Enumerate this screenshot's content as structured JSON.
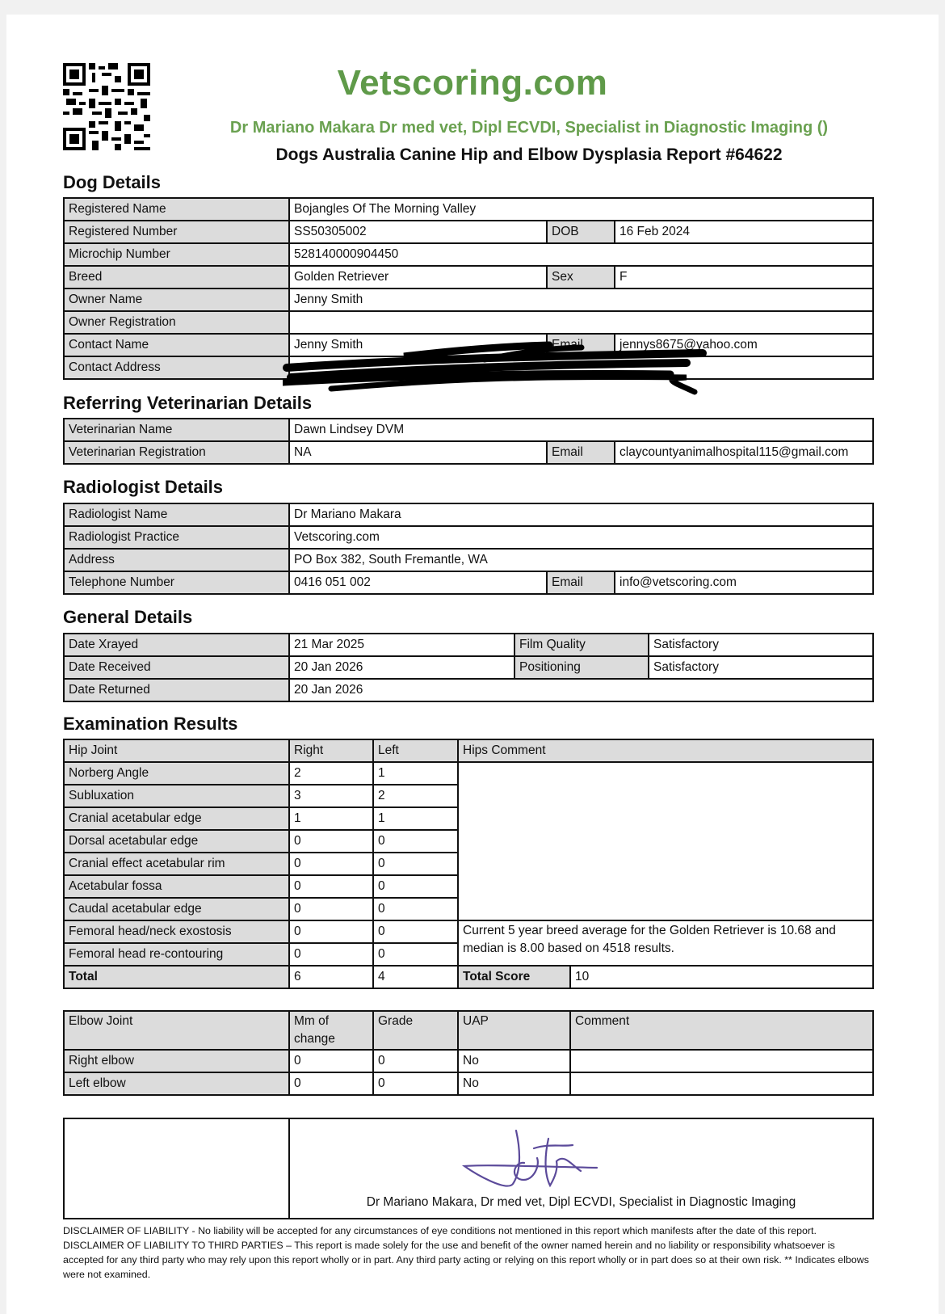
{
  "header": {
    "brand": "Vetscoring.com",
    "subtitle": "Dr Mariano Makara Dr med vet, Dipl ECVDI, Specialist in Diagnostic Imaging ()",
    "report_title": "Dogs Australia Canine Hip and Elbow Dysplasia Report #64622",
    "brand_color": "#5f9a49"
  },
  "dog": {
    "heading": "Dog Details",
    "registered_name_label": "Registered Name",
    "registered_name": "Bojangles Of The Morning Valley",
    "registered_number_label": "Registered Number",
    "registered_number": "SS50305002",
    "dob_label": "DOB",
    "dob": "16 Feb 2024",
    "microchip_label": "Microchip Number",
    "microchip": "528140000904450",
    "breed_label": "Breed",
    "breed": "Golden Retriever",
    "sex_label": "Sex",
    "sex": "F",
    "owner_name_label": "Owner Name",
    "owner_name": "Jenny Smith",
    "owner_reg_label": "Owner Registration",
    "owner_reg": "",
    "contact_name_label": "Contact Name",
    "contact_name": "Jenny Smith",
    "email_label": "Email",
    "email": "jennys8675@yahoo.com",
    "contact_address_label": "Contact Address"
  },
  "vet": {
    "heading": "Referring Veterinarian Details",
    "name_label": "Veterinarian Name",
    "name": "Dawn Lindsey DVM",
    "reg_label": "Veterinarian Registration",
    "reg": "NA",
    "email_label": "Email",
    "email": "claycountyanimalhospital115@gmail.com"
  },
  "radiologist": {
    "heading": "Radiologist Details",
    "name_label": "Radiologist Name",
    "name": "Dr Mariano Makara",
    "practice_label": "Radiologist Practice",
    "practice": "Vetscoring.com",
    "address_label": "Address",
    "address": "PO Box 382, South Fremantle, WA",
    "phone_label": "Telephone Number",
    "phone": "0416 051 002",
    "email_label": "Email",
    "email": "info@vetscoring.com"
  },
  "general": {
    "heading": "General Details",
    "xrayed_label": "Date Xrayed",
    "xrayed": "21 Mar 2025",
    "film_label": "Film Quality",
    "film": "Satisfactory",
    "received_label": "Date Received",
    "received": "20 Jan 2026",
    "positioning_label": "Positioning",
    "positioning": "Satisfactory",
    "returned_label": "Date Returned",
    "returned": "20 Jan 2026"
  },
  "exam": {
    "heading": "Examination Results",
    "hip_headers": [
      "Hip Joint",
      "Right",
      "Left",
      "Hips Comment"
    ],
    "hip_rows": [
      [
        "Norberg Angle",
        "2",
        "1"
      ],
      [
        "Subluxation",
        "3",
        "2"
      ],
      [
        "Cranial acetabular edge",
        "1",
        "1"
      ],
      [
        "Dorsal acetabular edge",
        "0",
        "0"
      ],
      [
        "Cranial effect acetabular rim",
        "0",
        "0"
      ],
      [
        "Acetabular fossa",
        "0",
        "0"
      ],
      [
        "Caudal acetabular edge",
        "0",
        "0"
      ],
      [
        "Femoral head/neck exostosis",
        "0",
        "0"
      ],
      [
        "Femoral head re-contouring",
        "0",
        "0"
      ]
    ],
    "breed_comment": "Current 5 year breed average for the Golden Retriever is 10.68 and median is 8.00 based on 4518 results.",
    "total_label": "Total",
    "total_right": "6",
    "total_left": "4",
    "total_score_label": "Total Score",
    "total_score": "10",
    "elbow_headers": [
      "Elbow Joint",
      "Mm of change",
      "Grade",
      "UAP",
      "Comment"
    ],
    "elbow_rows": [
      [
        "Right elbow",
        "0",
        "0",
        "No",
        ""
      ],
      [
        "Left elbow",
        "0",
        "0",
        "No",
        ""
      ]
    ]
  },
  "signature": {
    "caption": "Dr Mariano Makara, Dr med vet, Dipl ECVDI, Specialist in Diagnostic Imaging"
  },
  "disclaimer": "DISCLAIMER OF LIABILITY - No liability will be accepted for any circumstances of eye conditions not mentioned in this report which manifests after the date of this report. DISCLAIMER OF LIABILITY TO THIRD PARTIES – This report is made solely for the use and benefit of the owner named herein and no liability or responsibility whatsoever is accepted for any third party who may rely upon this report wholly or in part. Any third party acting or relying on this report wholly or in part does so at their own risk. ** Indicates elbows were not examined."
}
